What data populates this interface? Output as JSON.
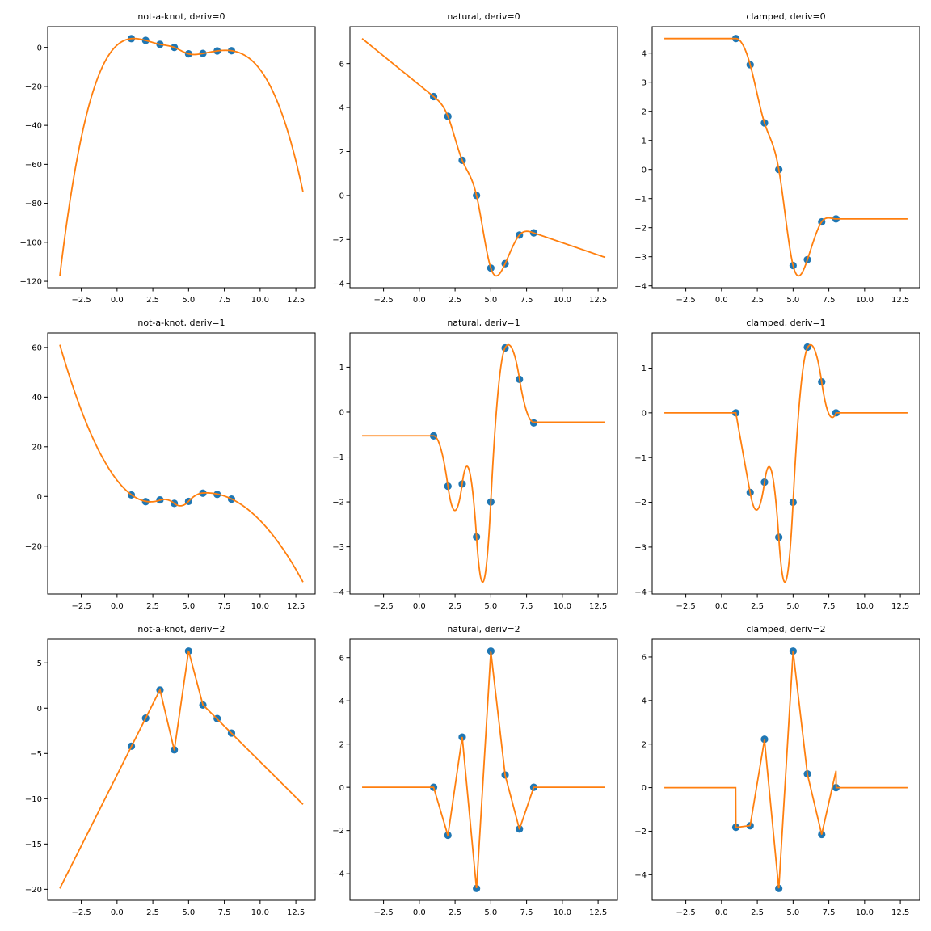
{
  "chart_data": {
    "type": "line",
    "layout": "3x3 grid",
    "knots": {
      "x": [
        1,
        2,
        3,
        4,
        5,
        6,
        7,
        8
      ],
      "y": [
        4.5,
        3.6,
        1.6,
        0,
        -3.3,
        -3.1,
        -1.8,
        -1.7
      ]
    },
    "curve_domain": [
      -4,
      13
    ],
    "colors": {
      "points": "#1f77b4",
      "curve": "#ff7f0e"
    },
    "xticks": [
      "-2.5",
      "0.0",
      "2.5",
      "5.0",
      "7.5",
      "10.0",
      "12.5"
    ],
    "panels": [
      {
        "title": "not-a-knot, deriv=0",
        "bc": "not-a-knot",
        "deriv": 0,
        "points_y": [
          4.5,
          3.6,
          1.6,
          0,
          -3.3,
          -3.1,
          -1.8,
          -1.7
        ],
        "yticks": [
          -120,
          -100,
          -80,
          -60,
          -40,
          -20,
          0
        ]
      },
      {
        "title": "natural, deriv=0",
        "bc": "natural",
        "deriv": 0,
        "points_y": [
          4.5,
          3.6,
          1.6,
          0,
          -3.3,
          -3.1,
          -1.8,
          -1.7
        ],
        "yticks": [
          -4,
          -2,
          0,
          2,
          4,
          6
        ]
      },
      {
        "title": "clamped, deriv=0",
        "bc": "clamped",
        "deriv": 0,
        "points_y": [
          4.5,
          3.6,
          1.6,
          0,
          -3.3,
          -3.1,
          -1.8,
          -1.7
        ],
        "yticks": [
          -4,
          -3,
          -2,
          -1,
          0,
          1,
          2,
          3,
          4
        ]
      },
      {
        "title": "not-a-knot, deriv=1",
        "bc": "not-a-knot",
        "deriv": 1,
        "points_y": [
          0.6,
          -2.1,
          -1.4,
          -2.8,
          -2.0,
          1.3,
          0.8,
          -1.1
        ],
        "yticks": [
          -20,
          0,
          20,
          40,
          60
        ]
      },
      {
        "title": "natural, deriv=1",
        "bc": "natural",
        "deriv": 1,
        "points_y": [
          -0.53,
          -1.65,
          -1.6,
          -2.78,
          -2.0,
          1.43,
          0.73,
          -0.24
        ],
        "yticks": [
          -4,
          -3,
          -2,
          -1,
          0,
          1
        ]
      },
      {
        "title": "clamped, deriv=1",
        "bc": "clamped",
        "deriv": 1,
        "points_y": [
          0,
          -1.78,
          -1.55,
          -2.78,
          -2.0,
          1.47,
          0.69,
          0
        ],
        "yticks": [
          -4,
          -3,
          -2,
          -1,
          0,
          1
        ]
      },
      {
        "title": "not-a-knot, deriv=2",
        "bc": "not-a-knot",
        "deriv": 2,
        "points_y": [
          -4.2,
          -1.1,
          2.0,
          -4.6,
          6.3,
          0.35,
          -1.15,
          -2.75
        ],
        "yticks": [
          -20,
          -15,
          -10,
          -5,
          0,
          5
        ]
      },
      {
        "title": "natural, deriv=2",
        "bc": "natural",
        "deriv": 2,
        "points_y": [
          0,
          -2.22,
          2.32,
          -4.68,
          6.3,
          0.57,
          -1.93,
          0
        ],
        "yticks": [
          -4,
          -2,
          0,
          2,
          4,
          6
        ]
      },
      {
        "title": "clamped, deriv=2",
        "bc": "clamped",
        "deriv": 2,
        "points_y": [
          -1.82,
          -1.75,
          2.22,
          -4.63,
          6.27,
          0.63,
          -2.15,
          0
        ],
        "yticks": [
          -4,
          -2,
          0,
          2,
          4,
          6
        ]
      }
    ]
  }
}
